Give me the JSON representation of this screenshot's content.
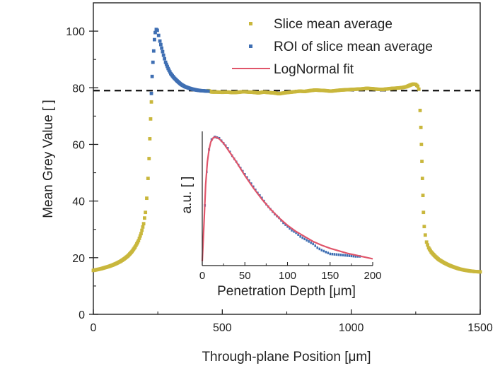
{
  "chart_data": {
    "type": "scatter",
    "title": "",
    "xlabel": "Through-plane Position [μm]",
    "ylabel": "Mean Grey Value [ ]",
    "xlim": [
      0,
      1500
    ],
    "ylim": [
      0,
      110
    ],
    "xticks": [
      0,
      500,
      1000,
      1500
    ],
    "yticks": [
      0,
      20,
      40,
      60,
      80,
      100
    ],
    "grid": false,
    "legend_position": "top-right",
    "reference_line": {
      "y": 79,
      "style": "dashed",
      "color": "#111111"
    },
    "series": [
      {
        "name": "Slice mean average",
        "color": "#c9b73c",
        "marker": "square",
        "points": [
          [
            0,
            15.5
          ],
          [
            15,
            15.8
          ],
          [
            30,
            16.1
          ],
          [
            45,
            16.5
          ],
          [
            60,
            16.9
          ],
          [
            75,
            17.4
          ],
          [
            90,
            18.0
          ],
          [
            105,
            18.7
          ],
          [
            120,
            19.6
          ],
          [
            135,
            20.7
          ],
          [
            150,
            22.2
          ],
          [
            162,
            23.8
          ],
          [
            175,
            26.0
          ],
          [
            185,
            28.5
          ],
          [
            195,
            32.0
          ],
          [
            202,
            36.0
          ],
          [
            207,
            41.0
          ],
          [
            212,
            48.0
          ],
          [
            216,
            55.0
          ],
          [
            219,
            62.0
          ],
          [
            222,
            69.0
          ],
          [
            225,
            75.0
          ],
          [
            445,
            79.0
          ],
          [
            460,
            78.5
          ],
          [
            480,
            78.5
          ],
          [
            500,
            78.4
          ],
          [
            520,
            78.5
          ],
          [
            540,
            78.3
          ],
          [
            560,
            78.4
          ],
          [
            580,
            78.6
          ],
          [
            600,
            78.5
          ],
          [
            620,
            78.4
          ],
          [
            640,
            78.2
          ],
          [
            660,
            78.5
          ],
          [
            680,
            78.3
          ],
          [
            700,
            78.2
          ],
          [
            720,
            77.9
          ],
          [
            740,
            78.2
          ],
          [
            760,
            78.4
          ],
          [
            780,
            78.6
          ],
          [
            800,
            78.8
          ],
          [
            820,
            78.7
          ],
          [
            840,
            79.0
          ],
          [
            860,
            79.2
          ],
          [
            880,
            79.1
          ],
          [
            900,
            79.0
          ],
          [
            920,
            78.8
          ],
          [
            940,
            79.0
          ],
          [
            960,
            79.2
          ],
          [
            980,
            79.3
          ],
          [
            1000,
            79.4
          ],
          [
            1020,
            79.5
          ],
          [
            1040,
            79.6
          ],
          [
            1060,
            79.8
          ],
          [
            1080,
            79.7
          ],
          [
            1100,
            79.5
          ],
          [
            1120,
            79.4
          ],
          [
            1140,
            79.6
          ],
          [
            1160,
            79.8
          ],
          [
            1180,
            79.9
          ],
          [
            1200,
            80.1
          ],
          [
            1215,
            80.4
          ],
          [
            1230,
            81.0
          ],
          [
            1240,
            81.3
          ],
          [
            1250,
            81.2
          ],
          [
            1258,
            80.5
          ],
          [
            1262,
            79.5
          ],
          [
            1267,
            72.0
          ],
          [
            1270,
            66.0
          ],
          [
            1272,
            60.0
          ],
          [
            1274,
            54.0
          ],
          [
            1276,
            48.0
          ],
          [
            1278,
            42.0
          ],
          [
            1280,
            36.0
          ],
          [
            1283,
            31.0
          ],
          [
            1287,
            28.0
          ],
          [
            1292,
            25.5
          ],
          [
            1300,
            23.5
          ],
          [
            1310,
            22.0
          ],
          [
            1325,
            20.5
          ],
          [
            1340,
            19.3
          ],
          [
            1360,
            18.2
          ],
          [
            1380,
            17.3
          ],
          [
            1400,
            16.6
          ],
          [
            1420,
            16.0
          ],
          [
            1440,
            15.6
          ],
          [
            1460,
            15.3
          ],
          [
            1480,
            15.1
          ],
          [
            1500,
            15.0
          ]
        ]
      },
      {
        "name": "ROI of slice mean average",
        "color": "#3f6fb3",
        "marker": "square",
        "points": [
          [
            225,
            78.0
          ],
          [
            228,
            84.0
          ],
          [
            231,
            89.0
          ],
          [
            234,
            93.0
          ],
          [
            237,
            97.0
          ],
          [
            240,
            99.5
          ],
          [
            244,
            100.6
          ],
          [
            248,
            100.3
          ],
          [
            253,
            98.5
          ],
          [
            258,
            96.5
          ],
          [
            265,
            94.0
          ],
          [
            272,
            91.5
          ],
          [
            280,
            89.0
          ],
          [
            290,
            86.8
          ],
          [
            300,
            85.0
          ],
          [
            312,
            83.6
          ],
          [
            325,
            82.4
          ],
          [
            340,
            81.2
          ],
          [
            355,
            80.4
          ],
          [
            370,
            79.9
          ],
          [
            385,
            79.5
          ],
          [
            400,
            79.2
          ],
          [
            415,
            79.0
          ],
          [
            430,
            78.9
          ],
          [
            445,
            78.8
          ]
        ]
      },
      {
        "name": "LogNormal fit",
        "color": "#e0556a",
        "marker": "line",
        "points": []
      }
    ],
    "inset": {
      "type": "line",
      "xlabel": "Penetration Depth [μm]",
      "ylabel": "a.u. [ ]",
      "xlim": [
        0,
        200
      ],
      "ylim": [
        0,
        1
      ],
      "xticks": [
        0,
        50,
        100,
        150,
        200
      ],
      "series": [
        {
          "name": "ROI of slice mean average",
          "color": "#3f6fb3",
          "style": "dashed-steps",
          "points": [
            [
              0,
              0.0
            ],
            [
              3,
              0.45
            ],
            [
              5,
              0.72
            ],
            [
              8,
              0.9
            ],
            [
              11,
              0.98
            ],
            [
              15,
              1.0
            ],
            [
              20,
              0.99
            ],
            [
              25,
              0.95
            ],
            [
              30,
              0.91
            ],
            [
              35,
              0.85
            ],
            [
              40,
              0.8
            ],
            [
              45,
              0.75
            ],
            [
              50,
              0.7
            ],
            [
              55,
              0.65
            ],
            [
              60,
              0.6
            ],
            [
              65,
              0.55
            ],
            [
              70,
              0.51
            ],
            [
              75,
              0.46
            ],
            [
              80,
              0.42
            ],
            [
              85,
              0.38
            ],
            [
              90,
              0.35
            ],
            [
              95,
              0.31
            ],
            [
              100,
              0.28
            ],
            [
              105,
              0.25
            ],
            [
              110,
              0.23
            ],
            [
              115,
              0.2
            ],
            [
              120,
              0.18
            ],
            [
              125,
              0.16
            ],
            [
              130,
              0.14
            ],
            [
              135,
              0.11
            ],
            [
              140,
              0.09
            ],
            [
              150,
              0.06
            ],
            [
              165,
              0.05
            ],
            [
              180,
              0.04
            ],
            [
              185,
              0.04
            ]
          ]
        },
        {
          "name": "LogNormal fit",
          "color": "#e0556a",
          "style": "solid",
          "points": [
            [
              0,
              0.0
            ],
            [
              2,
              0.3
            ],
            [
              4,
              0.62
            ],
            [
              6,
              0.8
            ],
            [
              8,
              0.9
            ],
            [
              10,
              0.96
            ],
            [
              13,
              0.995
            ],
            [
              16,
              1.0
            ],
            [
              20,
              0.985
            ],
            [
              25,
              0.95
            ],
            [
              30,
              0.9
            ],
            [
              40,
              0.8
            ],
            [
              50,
              0.69
            ],
            [
              60,
              0.59
            ],
            [
              70,
              0.5
            ],
            [
              80,
              0.42
            ],
            [
              90,
              0.35
            ],
            [
              100,
              0.29
            ],
            [
              110,
              0.24
            ],
            [
              120,
              0.2
            ],
            [
              130,
              0.16
            ],
            [
              140,
              0.13
            ],
            [
              150,
              0.105
            ],
            [
              160,
              0.085
            ],
            [
              170,
              0.065
            ],
            [
              180,
              0.05
            ],
            [
              190,
              0.035
            ],
            [
              200,
              0.02
            ]
          ]
        }
      ]
    }
  }
}
